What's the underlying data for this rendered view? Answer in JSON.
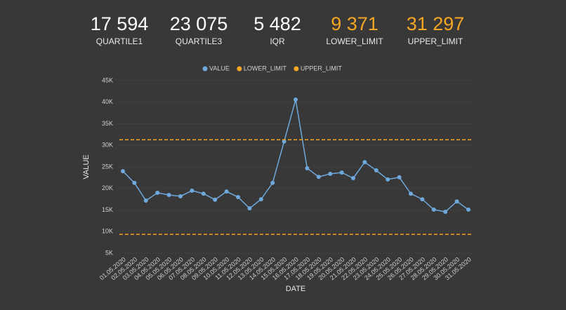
{
  "kpis": [
    {
      "value": "17 594",
      "label": "QUARTILE1",
      "color": "#ffffff"
    },
    {
      "value": "23 075",
      "label": "QUARTILE3",
      "color": "#ffffff"
    },
    {
      "value": "5 482",
      "label": "IQR",
      "color": "#ffffff"
    },
    {
      "value": "9 371",
      "label": "LOWER_LIMIT",
      "color": "#f5a623"
    },
    {
      "value": "31 297",
      "label": "UPPER_LIMIT",
      "color": "#f5a623"
    }
  ],
  "chart_data": {
    "type": "line",
    "x_label": "DATE",
    "y_label": "VALUE",
    "categories": [
      "01.05.2020",
      "02.05.2020",
      "03.05.2020",
      "04.05.2020",
      "05.05.2020",
      "06.05.2020",
      "07.05.2020",
      "08.05.2020",
      "09.05.2020",
      "10.05.2020",
      "11.05.2020",
      "12.05.2020",
      "13.05.2020",
      "14.05.2020",
      "15.05.2020",
      "16.05.2020",
      "17.05.2020",
      "18.05.2020",
      "19.05.2020",
      "20.05.2020",
      "21.05.2020",
      "22.05.2020",
      "23.05.2020",
      "24.05.2020",
      "25.05.2020",
      "26.05.2020",
      "27.05.2020",
      "28.05.2020",
      "29.05.2020",
      "30.05.2020",
      "31.05.2020"
    ],
    "series": [
      {
        "name": "VALUE",
        "color": "#6fa8dc",
        "values": [
          24000,
          21300,
          17200,
          19000,
          18500,
          18200,
          19500,
          18800,
          17400,
          19300,
          18000,
          15400,
          17500,
          21300,
          30900,
          40600,
          24700,
          22700,
          23400,
          23700,
          22400,
          26100,
          24200,
          22100,
          22600,
          18800,
          17500,
          15100,
          14600,
          17000,
          15100
        ]
      },
      {
        "name": "LOWER_LIMIT",
        "color": "#f5a623",
        "value": 9371
      },
      {
        "name": "UPPER_LIMIT",
        "color": "#f5a623",
        "value": 31297
      }
    ],
    "ylim": [
      5000,
      45000
    ],
    "yticks": [
      {
        "value": 5000,
        "label": "5K"
      },
      {
        "value": 10000,
        "label": "10K"
      },
      {
        "value": 15000,
        "label": "15K"
      },
      {
        "value": 20000,
        "label": "20K"
      },
      {
        "value": 25000,
        "label": "25K"
      },
      {
        "value": 30000,
        "label": "30K"
      },
      {
        "value": 35000,
        "label": "35K"
      },
      {
        "value": 40000,
        "label": "40K"
      },
      {
        "value": 45000,
        "label": "45K"
      }
    ],
    "grid": true
  }
}
